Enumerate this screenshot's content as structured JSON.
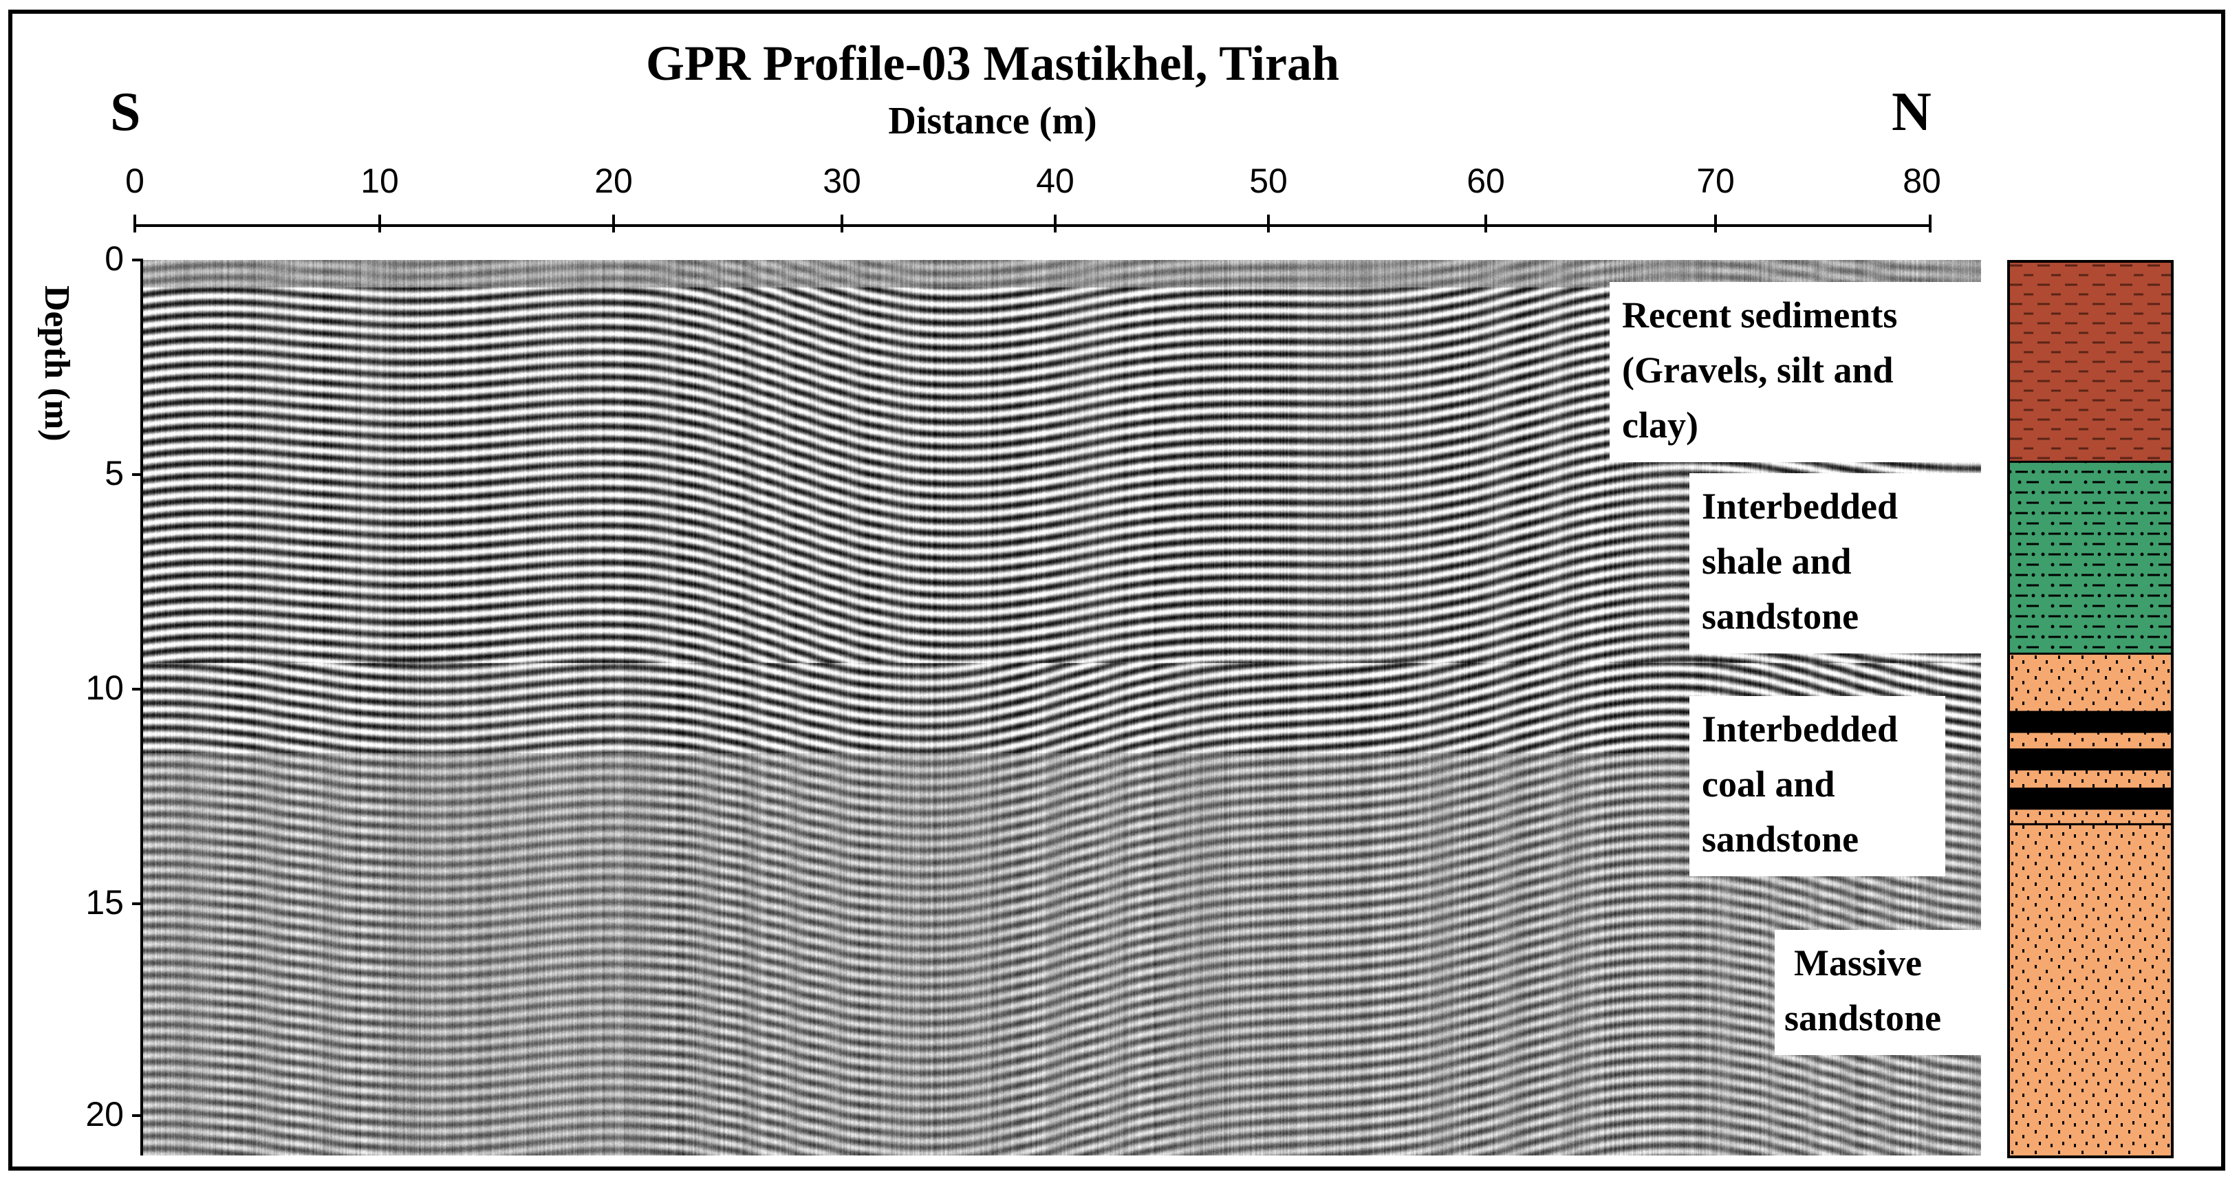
{
  "title": "GPR Profile-03 Mastikhel, Tirah",
  "x_axis": {
    "label": "Distance (m)",
    "ticks": [
      "0",
      "10",
      "20",
      "30",
      "40",
      "50",
      "60",
      "70",
      "80"
    ],
    "range": [
      0,
      80
    ]
  },
  "y_axis": {
    "label": "Depth (m)",
    "ticks": [
      "0",
      "5",
      "10",
      "15",
      "20"
    ],
    "range": [
      0,
      21
    ]
  },
  "direction": {
    "left": "S",
    "right": "N"
  },
  "layers": [
    {
      "lines": [
        "Recent sediments",
        "(Gravels, silt and",
        "clay)"
      ],
      "top_depth": 0,
      "bottom_depth": 4.7,
      "color": "#b04a33",
      "pattern": "dashes"
    },
    {
      "lines": [
        "Interbedded",
        "shale and",
        "sandstone"
      ],
      "top_depth": 4.7,
      "bottom_depth": 9.2,
      "color": "#3e9f6c",
      "pattern": "dash-dot"
    },
    {
      "lines": [
        "Interbedded",
        "coal and",
        "sandstone"
      ],
      "top_depth": 9.2,
      "bottom_depth": 13.2,
      "color": "#f5a86f",
      "pattern": "dots-coal"
    },
    {
      "lines": [
        "Massive",
        "sandstone"
      ],
      "top_depth": 13.2,
      "bottom_depth": 21,
      "color": "#f5a86f",
      "pattern": "dots"
    }
  ],
  "colors": {
    "coal": "#000000",
    "frame": "#000000"
  }
}
